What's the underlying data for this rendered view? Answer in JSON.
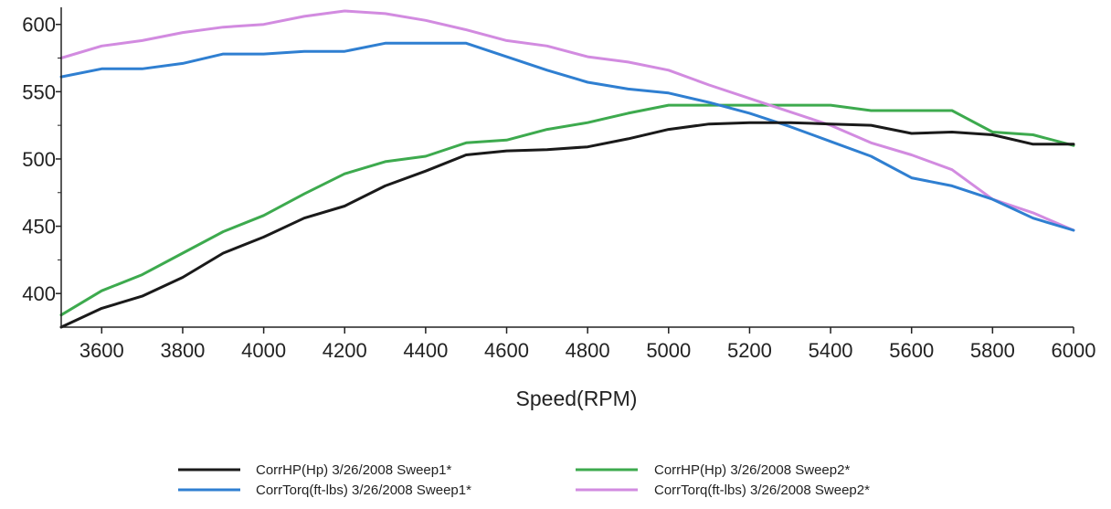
{
  "chart_data": {
    "type": "line",
    "xlabel": "Speed(RPM)",
    "ylabel": "",
    "xlim": [
      3500,
      6000
    ],
    "ylim": [
      375,
      610
    ],
    "x_ticks": [
      3600,
      3800,
      4000,
      4200,
      4400,
      4600,
      4800,
      5000,
      5200,
      5400,
      5600,
      5800,
      6000
    ],
    "y_ticks": [
      400,
      450,
      500,
      550,
      600
    ],
    "grid": false,
    "legend_position": "bottom",
    "series": [
      {
        "name": "CorrHP(Hp) 3/26/2008 Sweep1*",
        "color": "#1a1a1a",
        "x": [
          3500,
          3600,
          3700,
          3800,
          3900,
          4000,
          4100,
          4200,
          4300,
          4400,
          4500,
          4600,
          4700,
          4800,
          4900,
          5000,
          5100,
          5200,
          5300,
          5400,
          5500,
          5600,
          5700,
          5800,
          5900,
          6000
        ],
        "y": [
          375,
          389,
          398,
          412,
          430,
          442,
          456,
          465,
          480,
          491,
          503,
          506,
          507,
          509,
          515,
          522,
          526,
          527,
          527,
          526,
          525,
          519,
          520,
          518,
          511,
          511
        ]
      },
      {
        "name": "CorrTorq(ft-lbs) 3/26/2008 Sweep1*",
        "color": "#2f7fd1",
        "x": [
          3500,
          3600,
          3700,
          3800,
          3900,
          4000,
          4100,
          4200,
          4300,
          4400,
          4500,
          4600,
          4700,
          4800,
          4900,
          5000,
          5100,
          5200,
          5300,
          5400,
          5500,
          5600,
          5700,
          5800,
          5900,
          6000
        ],
        "y": [
          561,
          567,
          567,
          571,
          578,
          578,
          580,
          580,
          586,
          586,
          586,
          576,
          566,
          557,
          552,
          549,
          542,
          534,
          524,
          513,
          502,
          486,
          480,
          470,
          456,
          447
        ]
      },
      {
        "name": "CorrHP(Hp) 3/26/2008 Sweep2*",
        "color": "#3daa4e",
        "x": [
          3500,
          3600,
          3700,
          3800,
          3900,
          4000,
          4100,
          4200,
          4300,
          4400,
          4500,
          4600,
          4700,
          4800,
          4900,
          5000,
          5100,
          5200,
          5300,
          5400,
          5500,
          5600,
          5700,
          5800,
          5900,
          6000
        ],
        "y": [
          384,
          402,
          414,
          430,
          446,
          458,
          474,
          489,
          498,
          502,
          512,
          514,
          522,
          527,
          534,
          540,
          540,
          540,
          540,
          540,
          536,
          536,
          536,
          520,
          518,
          510
        ]
      },
      {
        "name": "CorrTorq(ft-lbs) 3/26/2008 Sweep2*",
        "color": "#d28be0",
        "x": [
          3500,
          3600,
          3700,
          3800,
          3900,
          4000,
          4100,
          4200,
          4300,
          4400,
          4500,
          4600,
          4700,
          4800,
          4900,
          5000,
          5100,
          5200,
          5300,
          5400,
          5500,
          5600,
          5700,
          5800,
          5900,
          6000
        ],
        "y": [
          575,
          584,
          588,
          594,
          598,
          600,
          606,
          610,
          608,
          603,
          596,
          588,
          584,
          576,
          572,
          566,
          555,
          545,
          535,
          525,
          512,
          503,
          492,
          470,
          460,
          447
        ]
      }
    ]
  }
}
